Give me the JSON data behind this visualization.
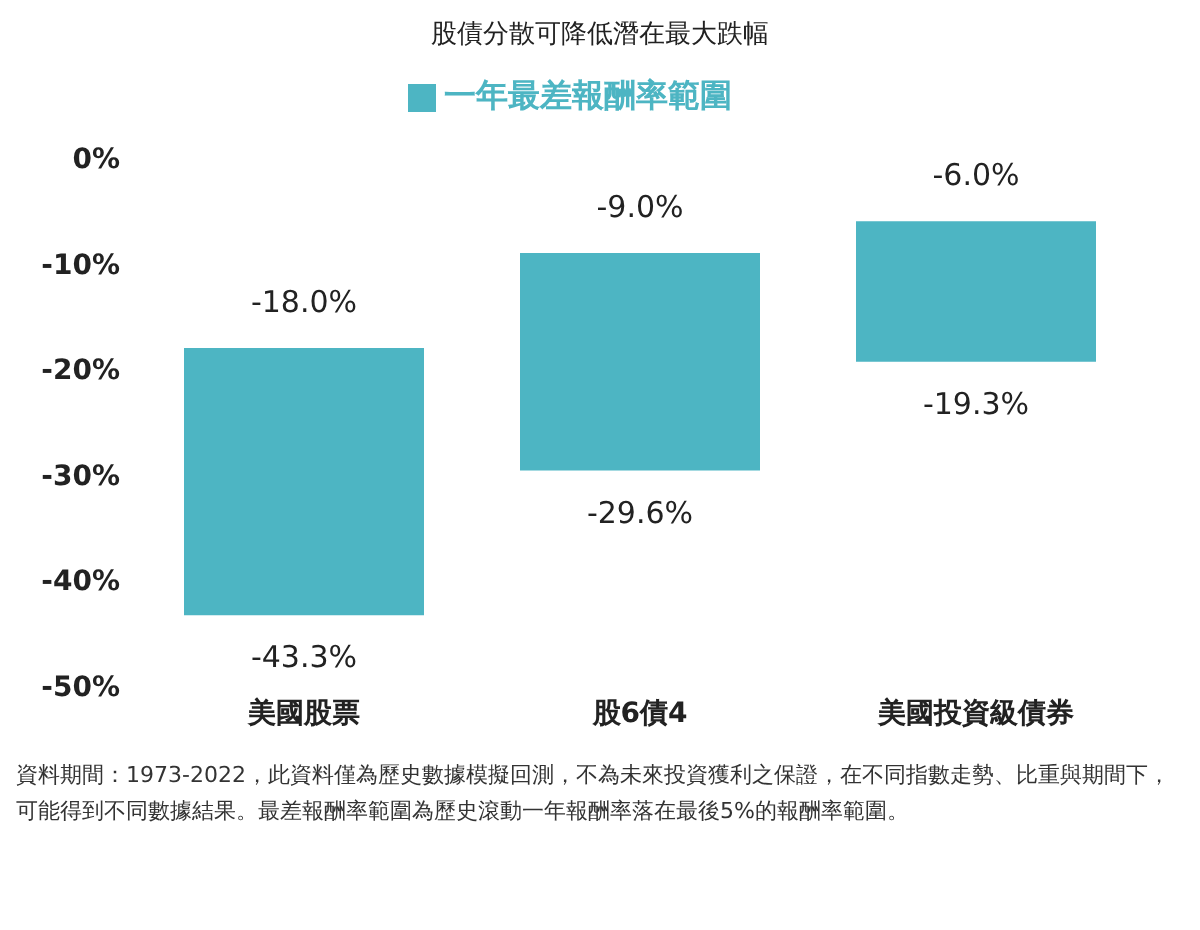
{
  "chart_data": {
    "type": "bar",
    "title": "股債分散可降低潛在最大跌幅",
    "categories": [
      "美國股票",
      "股6債4",
      "美國投資級債券"
    ],
    "series": [
      {
        "name": "一年最差報酬率範圍",
        "color": "#4db5c3",
        "values": [
          25.3,
          20.6,
          13.3
        ],
        "base": [
          -43.3,
          -29.6,
          -19.3
        ]
      }
    ],
    "ylim": [
      -50,
      0
    ],
    "yticks": [
      {
        "value": -50,
        "label": "-50%"
      },
      {
        "value": -40,
        "label": "-40%"
      },
      {
        "value": -30,
        "label": "-30%"
      },
      {
        "value": -20,
        "label": "-20%"
      },
      {
        "value": -10,
        "label": "-10%"
      },
      {
        "value": 0,
        "label": "0%"
      }
    ],
    "grid": false,
    "legend": "top",
    "annotations": [
      {
        "text": "-18.0%",
        "x": "美國股票",
        "y": -18.0
      },
      {
        "text": "-43.3%",
        "x": "美國股票",
        "y": -43.3
      },
      {
        "text": "-9.0%",
        "x": "股6債4",
        "y": -9.0
      },
      {
        "text": "-29.6%",
        "x": "股6債4",
        "y": -29.6
      },
      {
        "text": "-6.0%",
        "x": "美國投資級債券",
        "y": -6.0
      },
      {
        "text": "-19.3%",
        "x": "美國投資級債券",
        "y": -19.3
      },
      "資料期間：1973-2022，此資料僅為歷史數據模擬回測，不為未來投資獲利之保證，在不同指數走勢、比重與期間下，可能得到不同數據結果。最差報酬率範圍為歷史滾動一年報酬率落在最後5%的報酬率範圍。"
    ]
  }
}
